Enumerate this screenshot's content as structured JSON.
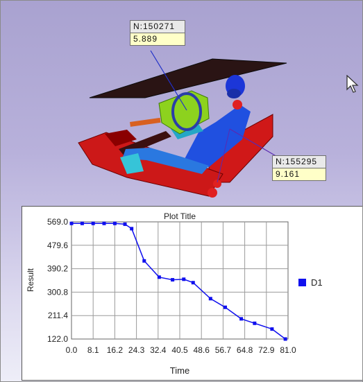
{
  "viewport": {
    "probes": [
      {
        "node_label": "N:150271",
        "value": "5.889"
      },
      {
        "node_label": "N:155295",
        "value": "9.161"
      }
    ]
  },
  "chart_data": {
    "type": "line",
    "title": "Plot Title",
    "xlabel": "Time",
    "ylabel": "Result",
    "xlim": [
      0.0,
      81.0
    ],
    "ylim": [
      122.0,
      569.0
    ],
    "x_ticks": [
      "0.0",
      "8.1",
      "16.2",
      "24.3",
      "32.4",
      "40.5",
      "48.6",
      "56.7",
      "64.8",
      "72.9",
      "81.0"
    ],
    "y_ticks": [
      "569.0",
      "479.6",
      "390.2",
      "300.8",
      "211.4",
      "122.0"
    ],
    "grid": true,
    "legend_position": "right",
    "series": [
      {
        "name": "D1",
        "color": "#1010ee",
        "x": [
          0.0,
          4.0,
          8.1,
          12.2,
          16.2,
          20.0,
          22.5,
          27.2,
          32.8,
          37.8,
          42.0,
          45.5,
          52.0,
          57.5,
          63.5,
          68.5,
          75.0,
          80.0
        ],
        "y": [
          563,
          563,
          563,
          563,
          563,
          560,
          543,
          420,
          358,
          348,
          350,
          337,
          276,
          243,
          199,
          182,
          160,
          122
        ]
      }
    ]
  }
}
